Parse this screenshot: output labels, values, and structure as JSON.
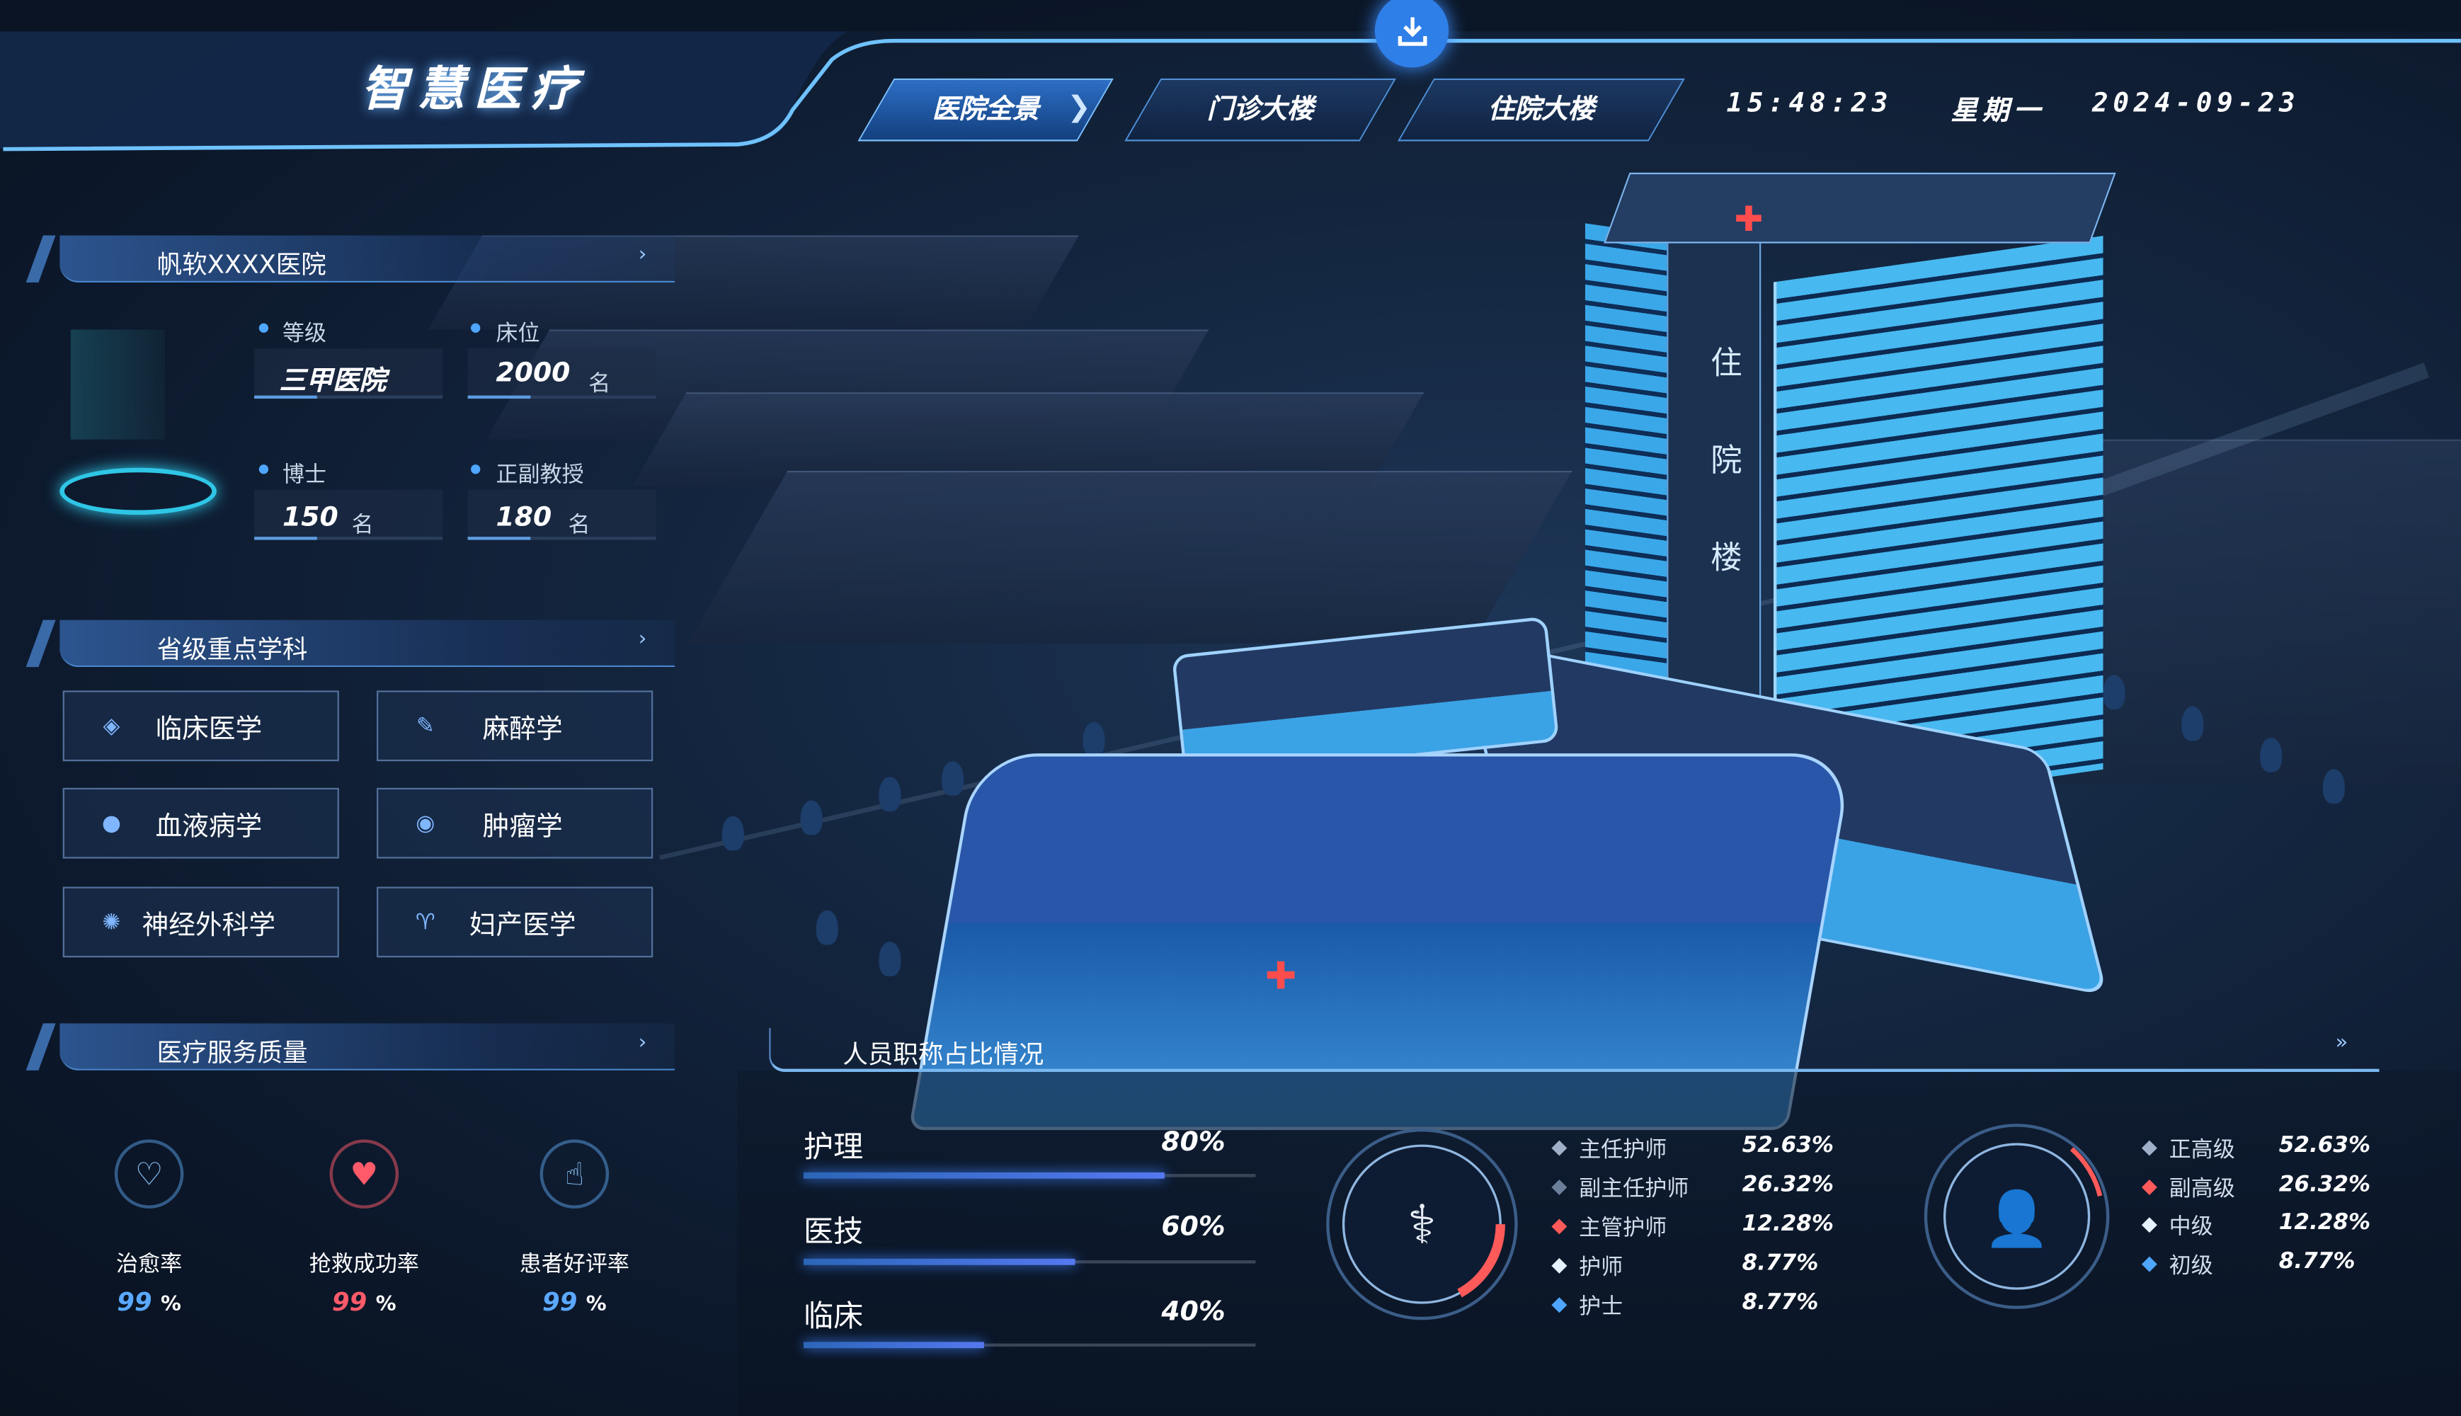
{
  "header": {
    "title": "智慧医疗",
    "tabs": [
      {
        "label": "医院全景",
        "active": true
      },
      {
        "label": "门诊大楼"
      },
      {
        "label": "住院大楼"
      }
    ],
    "time": "15:48:23",
    "weekday": "星期一",
    "date": "2024-09-23",
    "download_icon": "download-icon"
  },
  "hospital": {
    "title": "帆软XXXX医院",
    "stats": [
      {
        "label": "等级",
        "value": "三甲医院",
        "unit": ""
      },
      {
        "label": "床位",
        "value": "2000",
        "unit": "名"
      },
      {
        "label": "博士",
        "value": "150",
        "unit": "名"
      },
      {
        "label": "正副教授",
        "value": "180",
        "unit": "名"
      }
    ]
  },
  "disciplines": {
    "title": "省级重点学科",
    "items": [
      {
        "label": "临床医学",
        "icon": "cross-diamond-icon"
      },
      {
        "label": "麻醉学",
        "icon": "syringe-icon"
      },
      {
        "label": "血液病学",
        "icon": "blood-drop-icon"
      },
      {
        "label": "肿瘤学",
        "icon": "cell-icon"
      },
      {
        "label": "神经外科学",
        "icon": "brain-icon"
      },
      {
        "label": "妇产医学",
        "icon": "uterus-icon"
      }
    ]
  },
  "quality": {
    "title": "医疗服务质量",
    "items": [
      {
        "label": "治愈率",
        "value": "99",
        "unit": "%",
        "color": "#5aa8ff",
        "icon": "heart-icon"
      },
      {
        "label": "抢救成功率",
        "value": "99",
        "unit": "%",
        "color": "#ff5a6a",
        "icon": "heartbeat-icon"
      },
      {
        "label": "患者好评率",
        "value": "99",
        "unit": "%",
        "color": "#5aa8ff",
        "icon": "thumbs-up-icon"
      }
    ]
  },
  "building": {
    "label": "住院楼"
  },
  "staff": {
    "title": "人员职称占比情况",
    "bars": [
      {
        "label": "护理",
        "value": "80%",
        "pct": 80
      },
      {
        "label": "医技",
        "value": "60%",
        "pct": 60
      },
      {
        "label": "临床",
        "value": "40%",
        "pct": 40
      }
    ],
    "nurse_legend": [
      {
        "label": "主任护师",
        "value": "52.63%",
        "color": "#9fb0c8"
      },
      {
        "label": "副主任护师",
        "value": "26.32%",
        "color": "#6c7f9a"
      },
      {
        "label": "主管护师",
        "value": "12.28%",
        "color": "#ff5a5a"
      },
      {
        "label": "护师",
        "value": "8.77%",
        "color": "#e8f2ff"
      },
      {
        "label": "护士",
        "value": "8.77%",
        "color": "#4ea6ff"
      }
    ],
    "title_legend": [
      {
        "label": "正高级",
        "value": "52.63%",
        "color": "#9fb0c8"
      },
      {
        "label": "副高级",
        "value": "26.32%",
        "color": "#ff5a5a"
      },
      {
        "label": "中级",
        "value": "12.28%",
        "color": "#e8f2ff"
      },
      {
        "label": "初级",
        "value": "8.77%",
        "color": "#4ea6ff"
      }
    ]
  },
  "colors": {
    "accent": "#4ea6ff",
    "red": "#ff5a5a"
  }
}
